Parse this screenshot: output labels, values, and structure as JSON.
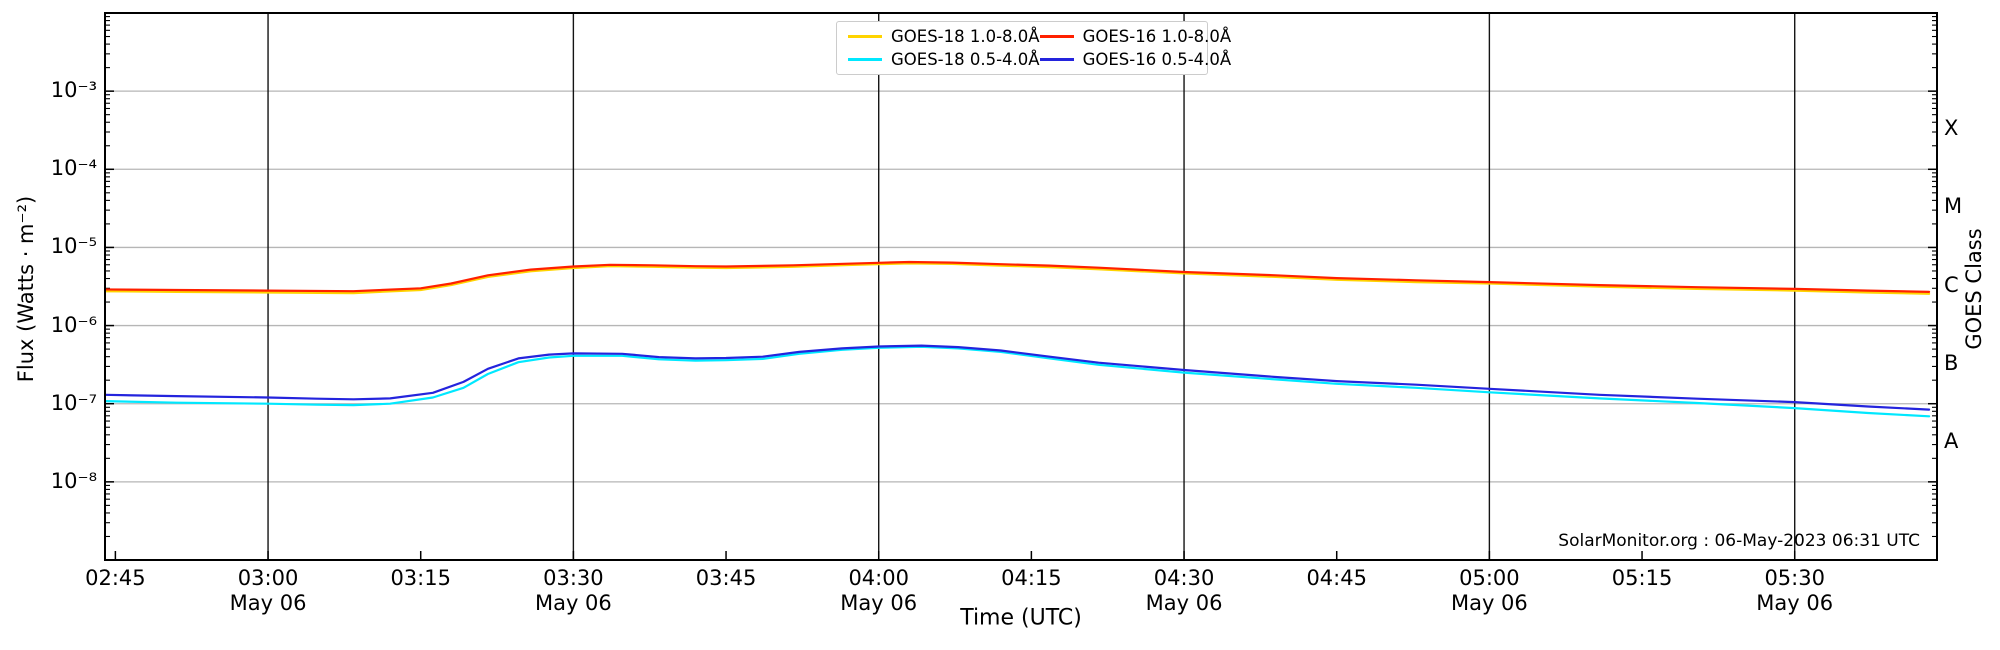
{
  "chart_data": {
    "type": "line",
    "title": "",
    "watermark": "SolarMonitor.org : 06-May-2023 06:31 UTC",
    "x_axis": {
      "label": "Time (UTC)",
      "unit": "hours UTC on 06 May 2023",
      "lim_hours": [
        2.733,
        5.733
      ],
      "ticks": [
        {
          "t": 2.75,
          "time": "02:45",
          "date": "",
          "gridline": false
        },
        {
          "t": 3.0,
          "time": "03:00",
          "date": "May 06",
          "gridline": true
        },
        {
          "t": 3.25,
          "time": "03:15",
          "date": "",
          "gridline": false
        },
        {
          "t": 3.5,
          "time": "03:30",
          "date": "May 06",
          "gridline": true
        },
        {
          "t": 3.75,
          "time": "03:45",
          "date": "",
          "gridline": false
        },
        {
          "t": 4.0,
          "time": "04:00",
          "date": "May 06",
          "gridline": true
        },
        {
          "t": 4.25,
          "time": "04:15",
          "date": "",
          "gridline": false
        },
        {
          "t": 4.5,
          "time": "04:30",
          "date": "May 06",
          "gridline": true
        },
        {
          "t": 4.75,
          "time": "04:45",
          "date": "",
          "gridline": false
        },
        {
          "t": 5.0,
          "time": "05:00",
          "date": "May 06",
          "gridline": true
        },
        {
          "t": 5.25,
          "time": "05:15",
          "date": "",
          "gridline": false
        },
        {
          "t": 5.5,
          "time": "05:30",
          "date": "May 06",
          "gridline": true
        }
      ]
    },
    "y_axis": {
      "label": "Flux (Watts · m⁻²)",
      "scale": "log",
      "lim_log10": [
        -9,
        -2
      ],
      "ticks": [
        {
          "label": "10⁻³",
          "exp": -3
        },
        {
          "label": "10⁻⁴",
          "exp": -4
        },
        {
          "label": "10⁻⁵",
          "exp": -5
        },
        {
          "label": "10⁻⁶",
          "exp": -6
        },
        {
          "label": "10⁻⁷",
          "exp": -7
        },
        {
          "label": "10⁻⁸",
          "exp": -8
        }
      ]
    },
    "right_axis": {
      "label": "GOES Class",
      "classes": [
        {
          "label": "X",
          "exp_mid": -3.5
        },
        {
          "label": "M",
          "exp_mid": -4.5
        },
        {
          "label": "C",
          "exp_mid": -5.5
        },
        {
          "label": "B",
          "exp_mid": -6.5
        },
        {
          "label": "A",
          "exp_mid": -7.5
        }
      ]
    },
    "colors": {
      "h_grid": "#b6b6b6",
      "v_grid": "#141414",
      "frame": "#000000"
    },
    "legend_layout": "2 columns: GOES-18 left, GOES-16 right",
    "series": [
      {
        "name": "GOES-18 1.0-8.0Å",
        "color": "#ffd400",
        "points": [
          [
            2.73,
            2.75e-06
          ],
          [
            2.85,
            2.7e-06
          ],
          [
            3.0,
            2.65e-06
          ],
          [
            3.14,
            2.6e-06
          ],
          [
            3.25,
            2.85e-06
          ],
          [
            3.3,
            3.3e-06
          ],
          [
            3.36,
            4.2e-06
          ],
          [
            3.43,
            4.95e-06
          ],
          [
            3.5,
            5.45e-06
          ],
          [
            3.56,
            5.75e-06
          ],
          [
            3.63,
            5.65e-06
          ],
          [
            3.7,
            5.5e-06
          ],
          [
            3.75,
            5.45e-06
          ],
          [
            3.86,
            5.65e-06
          ],
          [
            3.95,
            5.95e-06
          ],
          [
            4.0,
            6.1e-06
          ],
          [
            4.05,
            6.25e-06
          ],
          [
            4.12,
            6.15e-06
          ],
          [
            4.2,
            5.85e-06
          ],
          [
            4.28,
            5.6e-06
          ],
          [
            4.36,
            5.25e-06
          ],
          [
            4.5,
            4.65e-06
          ],
          [
            4.65,
            4.2e-06
          ],
          [
            4.75,
            3.85e-06
          ],
          [
            4.88,
            3.6e-06
          ],
          [
            5.0,
            3.45e-06
          ],
          [
            5.18,
            3.15e-06
          ],
          [
            5.34,
            2.95e-06
          ],
          [
            5.5,
            2.8e-06
          ],
          [
            5.62,
            2.65e-06
          ],
          [
            5.72,
            2.55e-06
          ]
        ]
      },
      {
        "name": "GOES-18 0.5-4.0Å",
        "color": "#00e8ff",
        "points": [
          [
            2.73,
            1.08e-07
          ],
          [
            2.85,
            1.03e-07
          ],
          [
            3.0,
            1e-07
          ],
          [
            3.08,
            9.7e-08
          ],
          [
            3.14,
            9.6e-08
          ],
          [
            3.2,
            1e-07
          ],
          [
            3.27,
            1.2e-07
          ],
          [
            3.32,
            1.6e-07
          ],
          [
            3.36,
            2.4e-07
          ],
          [
            3.41,
            3.4e-07
          ],
          [
            3.46,
            3.9e-07
          ],
          [
            3.5,
            4.1e-07
          ],
          [
            3.58,
            4.1e-07
          ],
          [
            3.64,
            3.7e-07
          ],
          [
            3.7,
            3.55e-07
          ],
          [
            3.75,
            3.6e-07
          ],
          [
            3.81,
            3.75e-07
          ],
          [
            3.87,
            4.35e-07
          ],
          [
            3.94,
            4.9e-07
          ],
          [
            4.0,
            5.2e-07
          ],
          [
            4.07,
            5.35e-07
          ],
          [
            4.13,
            5.1e-07
          ],
          [
            4.2,
            4.6e-07
          ],
          [
            4.28,
            3.8e-07
          ],
          [
            4.36,
            3.15e-07
          ],
          [
            4.5,
            2.5e-07
          ],
          [
            4.65,
            2.05e-07
          ],
          [
            4.75,
            1.8e-07
          ],
          [
            4.88,
            1.6e-07
          ],
          [
            5.0,
            1.4e-07
          ],
          [
            5.18,
            1.17e-07
          ],
          [
            5.34,
            1.02e-07
          ],
          [
            5.5,
            8.8e-08
          ],
          [
            5.62,
            7.6e-08
          ],
          [
            5.72,
            6.9e-08
          ]
        ]
      },
      {
        "name": "GOES-16 1.0-8.0Å",
        "color": "#ff2000",
        "points": [
          [
            2.73,
            2.9e-06
          ],
          [
            2.85,
            2.85e-06
          ],
          [
            3.0,
            2.8e-06
          ],
          [
            3.14,
            2.75e-06
          ],
          [
            3.25,
            3e-06
          ],
          [
            3.3,
            3.45e-06
          ],
          [
            3.36,
            4.4e-06
          ],
          [
            3.43,
            5.2e-06
          ],
          [
            3.5,
            5.7e-06
          ],
          [
            3.56,
            6e-06
          ],
          [
            3.63,
            5.9e-06
          ],
          [
            3.7,
            5.75e-06
          ],
          [
            3.75,
            5.7e-06
          ],
          [
            3.86,
            5.9e-06
          ],
          [
            3.95,
            6.2e-06
          ],
          [
            4.0,
            6.35e-06
          ],
          [
            4.05,
            6.5e-06
          ],
          [
            4.12,
            6.4e-06
          ],
          [
            4.2,
            6.1e-06
          ],
          [
            4.28,
            5.85e-06
          ],
          [
            4.36,
            5.5e-06
          ],
          [
            4.5,
            4.85e-06
          ],
          [
            4.65,
            4.4e-06
          ],
          [
            4.75,
            4.05e-06
          ],
          [
            4.88,
            3.8e-06
          ],
          [
            5.0,
            3.6e-06
          ],
          [
            5.18,
            3.3e-06
          ],
          [
            5.34,
            3.1e-06
          ],
          [
            5.5,
            2.95e-06
          ],
          [
            5.62,
            2.8e-06
          ],
          [
            5.72,
            2.7e-06
          ]
        ]
      },
      {
        "name": "GOES-16 0.5-4.0Å",
        "color": "#2424dd",
        "points": [
          [
            2.73,
            1.3e-07
          ],
          [
            2.85,
            1.25e-07
          ],
          [
            3.0,
            1.2e-07
          ],
          [
            3.08,
            1.16e-07
          ],
          [
            3.14,
            1.14e-07
          ],
          [
            3.2,
            1.17e-07
          ],
          [
            3.27,
            1.38e-07
          ],
          [
            3.32,
            1.9e-07
          ],
          [
            3.36,
            2.8e-07
          ],
          [
            3.41,
            3.8e-07
          ],
          [
            3.46,
            4.25e-07
          ],
          [
            3.5,
            4.4e-07
          ],
          [
            3.58,
            4.35e-07
          ],
          [
            3.64,
            3.95e-07
          ],
          [
            3.7,
            3.8e-07
          ],
          [
            3.75,
            3.85e-07
          ],
          [
            3.81,
            4e-07
          ],
          [
            3.87,
            4.6e-07
          ],
          [
            3.94,
            5.1e-07
          ],
          [
            4.0,
            5.4e-07
          ],
          [
            4.07,
            5.55e-07
          ],
          [
            4.13,
            5.3e-07
          ],
          [
            4.2,
            4.8e-07
          ],
          [
            4.28,
            4e-07
          ],
          [
            4.36,
            3.35e-07
          ],
          [
            4.5,
            2.7e-07
          ],
          [
            4.65,
            2.2e-07
          ],
          [
            4.75,
            1.95e-07
          ],
          [
            4.88,
            1.75e-07
          ],
          [
            5.0,
            1.55e-07
          ],
          [
            5.18,
            1.3e-07
          ],
          [
            5.34,
            1.16e-07
          ],
          [
            5.5,
            1.05e-07
          ],
          [
            5.62,
            9.2e-08
          ],
          [
            5.72,
            8.4e-08
          ]
        ]
      }
    ]
  }
}
